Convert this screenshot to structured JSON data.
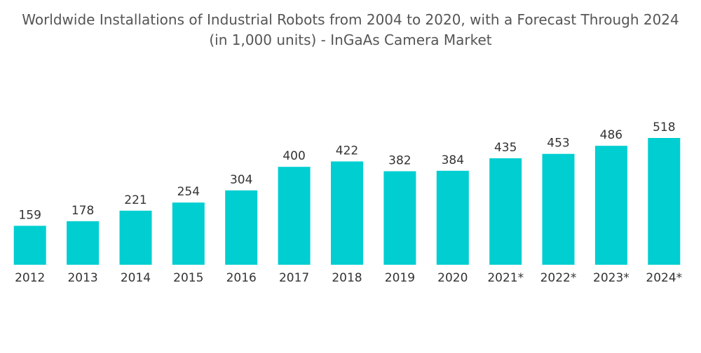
{
  "chart_data": {
    "type": "bar",
    "title_lines": [
      "Worldwide Installations of Industrial Robots from 2004 to 2020, with a Forecast Through 2024",
      "(in 1,000 units) - InGaAs Camera Market"
    ],
    "categories": [
      "2012",
      "2013",
      "2014",
      "2015",
      "2016",
      "2017",
      "2018",
      "2019",
      "2020",
      "2021*",
      "2022*",
      "2023*",
      "2024*"
    ],
    "values": [
      159,
      178,
      221,
      254,
      304,
      400,
      422,
      382,
      384,
      435,
      453,
      486,
      518
    ],
    "data_labels": [
      "159",
      "178",
      "221",
      "254",
      "304",
      "400",
      "422",
      "382",
      "384",
      "435",
      "453",
      "486",
      "518"
    ],
    "xlabel": "",
    "ylabel": "",
    "ylim": [
      0,
      518
    ],
    "grid": false,
    "legend": "none",
    "bar_color": "#00CED1"
  }
}
